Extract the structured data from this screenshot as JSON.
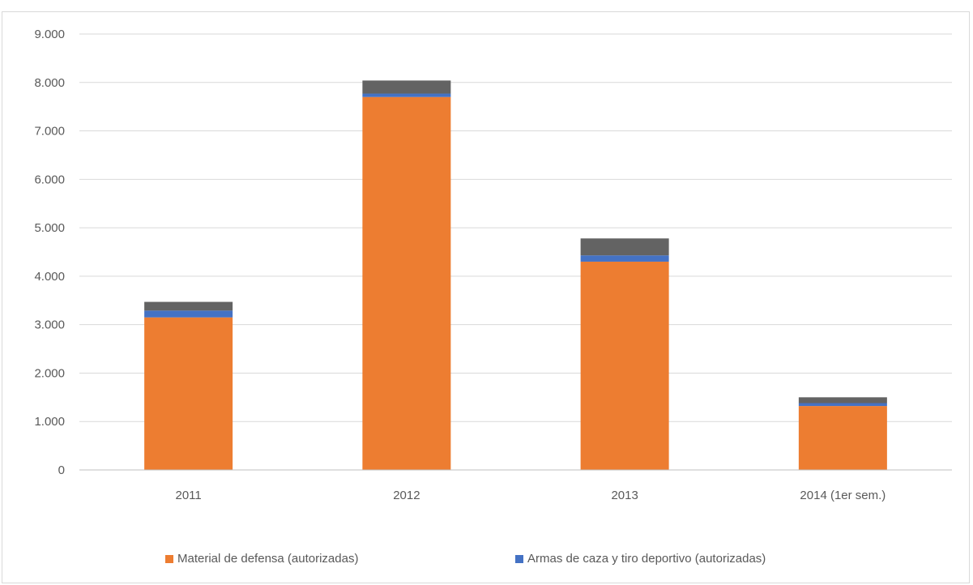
{
  "chart_data": {
    "type": "bar",
    "stacked": true,
    "title": "",
    "xlabel": "",
    "ylabel": "",
    "categories": [
      "2011",
      "2012",
      "2013",
      "2014 (1er sem.)"
    ],
    "ylim": [
      0,
      9000
    ],
    "yticks": [
      0,
      1000,
      2000,
      3000,
      4000,
      5000,
      6000,
      7000,
      8000,
      9000
    ],
    "ytick_labels": [
      "0",
      "1.000",
      "2.000",
      "3.000",
      "4.000",
      "5.000",
      "6.000",
      "7.000",
      "8.000",
      "9.000"
    ],
    "grid": true,
    "legend_position": "bottom",
    "series": [
      {
        "name": "Material de defensa (autorizadas)",
        "color": "#ED7D31",
        "values": [
          3150,
          7700,
          4300,
          1320
        ]
      },
      {
        "name": "Armas de caza y tiro deportivo (autorizadas)",
        "color": "#4472C4",
        "values": [
          140,
          70,
          130,
          60
        ]
      },
      {
        "color": "#636363",
        "values": [
          180,
          270,
          350,
          120
        ]
      }
    ]
  }
}
